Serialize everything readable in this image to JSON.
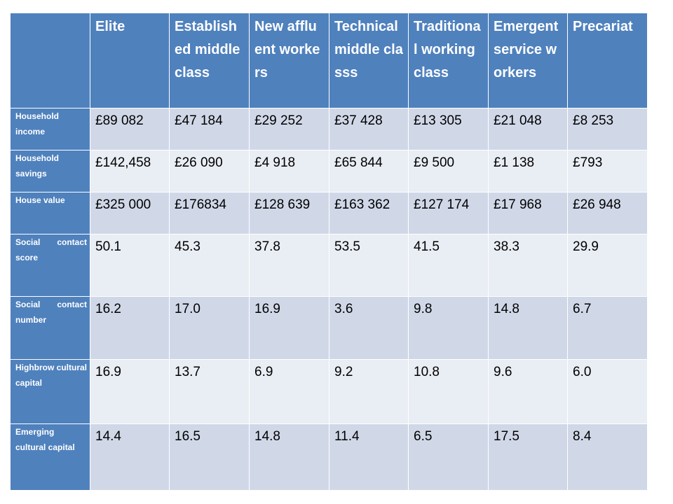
{
  "table": {
    "columns": [
      "",
      "Elite",
      "Established middle class",
      "New affluent workers",
      "Technical middle classs",
      "Traditional working class",
      "Emergent service workers",
      "Precariat"
    ],
    "rows": [
      {
        "label": "Household income",
        "values": [
          "£89 082",
          "£47 184",
          "£29 252",
          "£37 428",
          "£13 305",
          "£21 048",
          "£8 253"
        ]
      },
      {
        "label": "Household savings",
        "values": [
          "£142,458",
          "£26 090",
          "£4 918",
          "£65 844",
          "£9 500",
          "£1 138",
          "£793"
        ]
      },
      {
        "label": "House value",
        "values": [
          "£325 000",
          "£176834",
          "£128 639",
          "£163 362",
          "£127 174",
          "£17 968",
          "£26 948"
        ]
      },
      {
        "label": "Social contact score",
        "values": [
          "50.1",
          "45.3",
          "37.8",
          "53.5",
          "41.5",
          "38.3",
          "29.9"
        ]
      },
      {
        "label": "Social contact number",
        "values": [
          "16.2",
          "17.0",
          "16.9",
          "3.6",
          "9.8",
          "14.8",
          "6.7"
        ]
      },
      {
        "label": "Highbrow cultural capital",
        "values": [
          "16.9",
          "13.7",
          "6.9",
          "9.2",
          "10.8",
          "9.6",
          "6.0"
        ]
      },
      {
        "label": "Emerging cultural capital",
        "values": [
          "14.4",
          "16.5",
          "14.8",
          "11.4",
          "6.5",
          "17.5",
          "8.4"
        ]
      }
    ]
  },
  "colors": {
    "header_bg": "#4f81bd",
    "band_dark": "#d0d8e8",
    "band_light": "#e9edf4"
  }
}
